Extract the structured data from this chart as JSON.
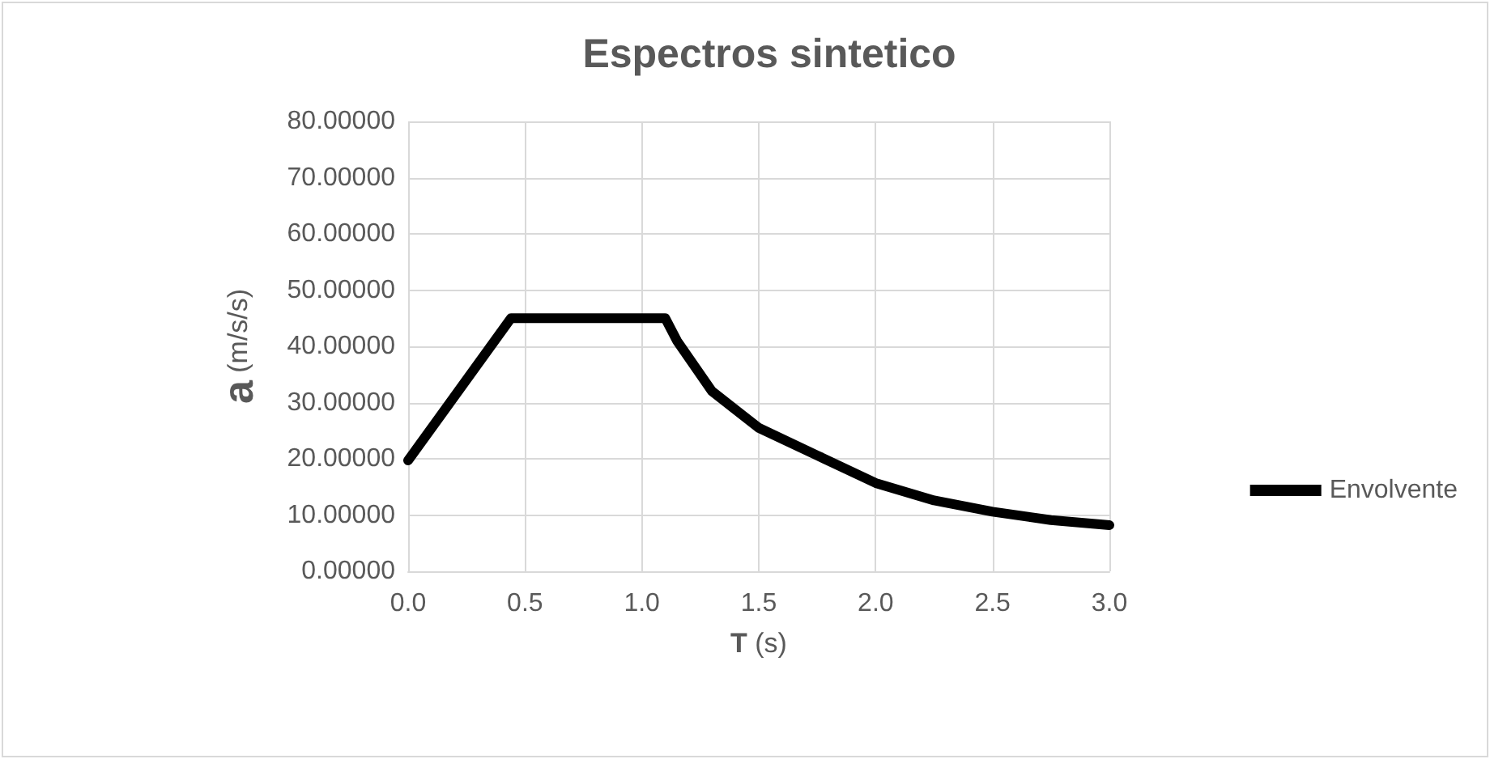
{
  "chart_data": {
    "type": "line",
    "title": "Espectros sintetico",
    "xlabel": "T (s)",
    "ylabel": "a (m/s/s)",
    "xlim": [
      0,
      3
    ],
    "xticks": [
      {
        "value": 0,
        "label": "0.0"
      },
      {
        "value": 0.5,
        "label": "0.5"
      },
      {
        "value": 1,
        "label": "1.0"
      },
      {
        "value": 1.5,
        "label": "1.5"
      },
      {
        "value": 2,
        "label": "2.0"
      },
      {
        "value": 2.5,
        "label": "2.5"
      },
      {
        "value": 3,
        "label": "3.0"
      }
    ],
    "ylim": [
      0,
      80
    ],
    "yticks": [
      {
        "value": 0,
        "label": "0.00000"
      },
      {
        "value": 10,
        "label": "10.00000"
      },
      {
        "value": 20,
        "label": "20.00000"
      },
      {
        "value": 30,
        "label": "30.00000"
      },
      {
        "value": 40,
        "label": "40.00000"
      },
      {
        "value": 50,
        "label": "50.00000"
      },
      {
        "value": 60,
        "label": "60.00000"
      },
      {
        "value": 70,
        "label": "70.00000"
      },
      {
        "value": 80,
        "label": "80.00000"
      }
    ],
    "series": [
      {
        "name": "Envolvente",
        "color": "#000000",
        "x": [
          0,
          0.44,
          1.1,
          1.15,
          1.3,
          1.5,
          1.75,
          2.0,
          2.25,
          2.5,
          2.75,
          3.0
        ],
        "values": [
          19.7,
          45,
          45,
          41,
          32,
          25.5,
          20.6,
          15.7,
          12.6,
          10.6,
          9.1,
          8.2
        ]
      }
    ],
    "grid": true,
    "legend": "right",
    "marker": "none",
    "line_style": "solid"
  }
}
